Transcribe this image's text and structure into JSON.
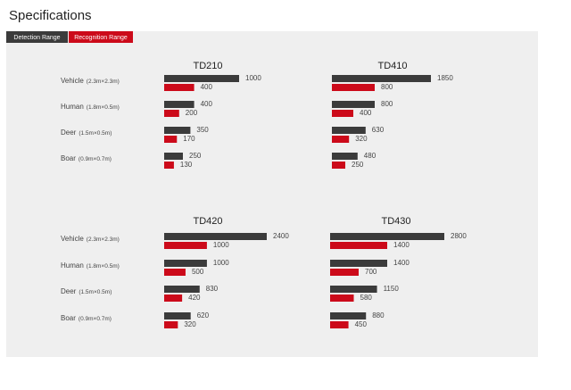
{
  "title": "Specifications",
  "chart_data": [
    {
      "type": "bar",
      "orientation": "horizontal",
      "title": "TD210",
      "categories": [
        "Vehicle",
        "Human",
        "Deer",
        "Boar"
      ],
      "category_sizes": [
        "(2.3m×2.3m)",
        "(1.8m×0.5m)",
        "(1.5m×0.5m)",
        "(0.9m×0.7m)"
      ],
      "series": [
        {
          "name": "Detection Range",
          "color": "#3b3b3b",
          "values": [
            1000,
            400,
            350,
            250
          ]
        },
        {
          "name": "Recognition Range",
          "color": "#cc0a1a",
          "values": [
            400,
            200,
            170,
            130
          ]
        }
      ]
    },
    {
      "type": "bar",
      "orientation": "horizontal",
      "title": "TD410",
      "series": [
        {
          "name": "Detection Range",
          "color": "#3b3b3b",
          "values": [
            1850,
            800,
            630,
            480
          ]
        },
        {
          "name": "Recognition Range",
          "color": "#cc0a1a",
          "values": [
            800,
            400,
            320,
            250
          ]
        }
      ]
    },
    {
      "type": "bar",
      "orientation": "horizontal",
      "title": "TD420",
      "categories": [
        "Vehicle",
        "Human",
        "Deer",
        "Boar"
      ],
      "category_sizes": [
        "(2.3m×2.3m)",
        "(1.8m×0.5m)",
        "(1.5m×0.5m)",
        "(0.9m×0.7m)"
      ],
      "series": [
        {
          "name": "Detection Range",
          "color": "#3b3b3b",
          "values": [
            2400,
            1000,
            830,
            620
          ]
        },
        {
          "name": "Recognition Range",
          "color": "#cc0a1a",
          "values": [
            1000,
            500,
            420,
            320
          ]
        }
      ]
    },
    {
      "type": "bar",
      "orientation": "horizontal",
      "title": "TD430",
      "series": [
        {
          "name": "Detection Range",
          "color": "#3b3b3b",
          "values": [
            2800,
            1400,
            1150,
            880
          ]
        },
        {
          "name": "Recognition Range",
          "color": "#cc0a1a",
          "values": [
            1400,
            700,
            580,
            450
          ]
        }
      ]
    }
  ]
}
